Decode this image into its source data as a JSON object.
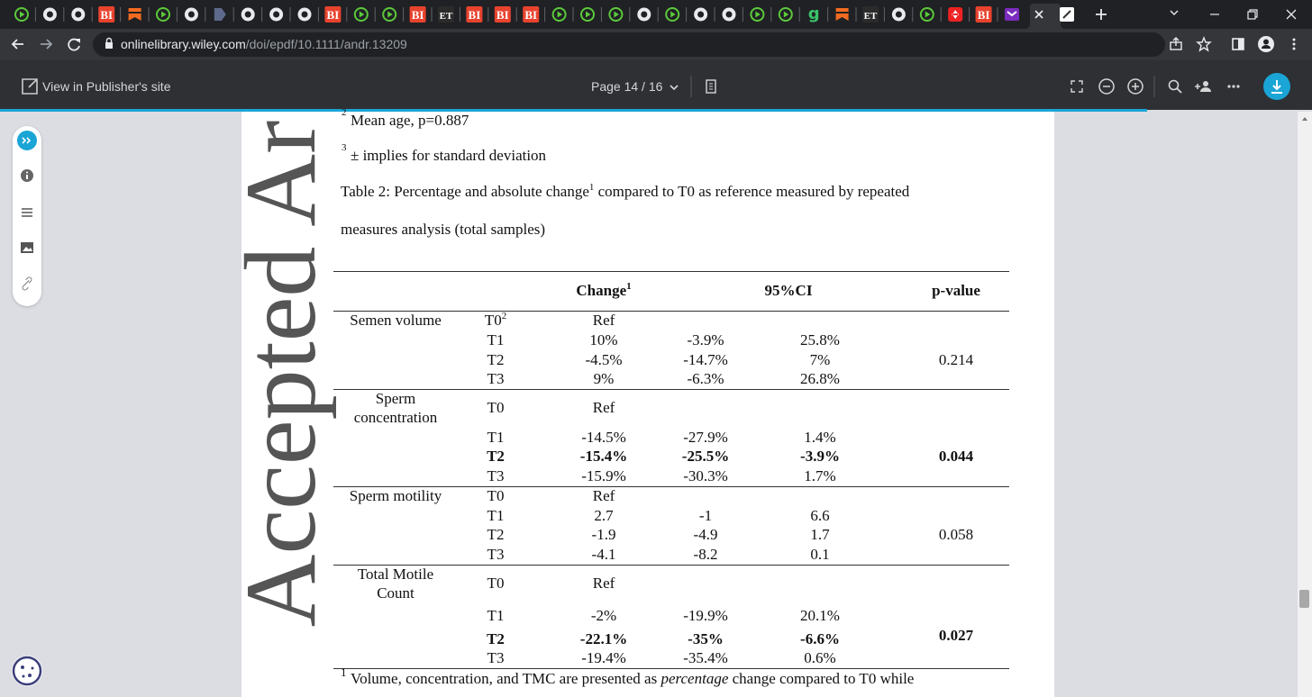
{
  "browser": {
    "tab_badges": [
      "BI",
      "BI",
      "BI",
      "ET",
      "BI",
      "BI",
      "BI",
      "g",
      "ET",
      "BI"
    ],
    "url_host": "onlinelibrary.wiley.com",
    "url_path": "/doi/epdf/10.1111/andr.13209"
  },
  "viewer": {
    "publisher_link": "View in Publisher's site",
    "page_indicator": "Page 14 / 16"
  },
  "document": {
    "watermark": "Accepted Ar",
    "notes": [
      {
        "mark": "2",
        "text": "Mean age, p=0.887"
      },
      {
        "mark": "3",
        "text": "± implies for standard deviation"
      }
    ],
    "caption": {
      "before": "Table 2: Percentage and absolute change",
      "sup": "1",
      "after": " compared to T0 as reference measured by repeated",
      "line2": "measures analysis (total samples)"
    },
    "table": {
      "header": {
        "change": "Change",
        "change_sup": "1",
        "ci": "95%CI",
        "p_value": "p-value"
      },
      "groups": [
        {
          "name": [
            "Semen volume"
          ],
          "p_value": "0.214",
          "rows": [
            {
              "time": "T0",
              "time_sup": "2",
              "change": "Ref"
            },
            {
              "time": "T1",
              "change": "10%",
              "ci_low": "-3.9%",
              "ci_high": "25.8%"
            },
            {
              "time": "T2",
              "change": "-4.5%",
              "ci_low": "-14.7%",
              "ci_high": "7%"
            },
            {
              "time": "T3",
              "change": "9%",
              "ci_low": "-6.3%",
              "ci_high": "26.8%"
            }
          ]
        },
        {
          "name": [
            "Sperm",
            "concentration"
          ],
          "p_value": "0.044",
          "p_bold": true,
          "rows": [
            {
              "time": "T0",
              "change": "Ref"
            },
            {
              "time": "T1",
              "change": "-14.5%",
              "ci_low": "-27.9%",
              "ci_high": "1.4%"
            },
            {
              "time": "T2",
              "change": "-15.4%",
              "ci_low": "-25.5%",
              "ci_high": "-3.9%",
              "bold": true
            },
            {
              "time": "T3",
              "change": "-15.9%",
              "ci_low": "-30.3%",
              "ci_high": "1.7%"
            }
          ]
        },
        {
          "name": [
            "Sperm motility"
          ],
          "p_value": "0.058",
          "rows": [
            {
              "time": "T0",
              "change": "Ref"
            },
            {
              "time": "T1",
              "change": "2.7",
              "ci_low": "-1",
              "ci_high": "6.6"
            },
            {
              "time": "T2",
              "change": "-1.9",
              "ci_low": "-4.9",
              "ci_high": "1.7"
            },
            {
              "time": "T3",
              "change": "-4.1",
              "ci_low": "-8.2",
              "ci_high": "0.1"
            }
          ]
        },
        {
          "name": [
            "Total Motile",
            "Count"
          ],
          "p_value": "0.027",
          "p_bold": true,
          "rows": [
            {
              "time": "T0",
              "change": "Ref"
            },
            {
              "time": "T1",
              "change": "-2%",
              "ci_low": "-19.9%",
              "ci_high": "20.1%"
            },
            {
              "time": "T2",
              "change": "-22.1%",
              "ci_low": "-35%",
              "ci_high": "-6.6%",
              "bold": true
            },
            {
              "time": "T3",
              "change": "-19.4%",
              "ci_low": "-35.4%",
              "ci_high": "0.6%"
            }
          ]
        }
      ]
    },
    "footnote": {
      "mark": "1",
      "before": "Volume, concentration, and TMC are presented as ",
      "italic": "percentage",
      "after": " change compared to T0 while"
    }
  }
}
